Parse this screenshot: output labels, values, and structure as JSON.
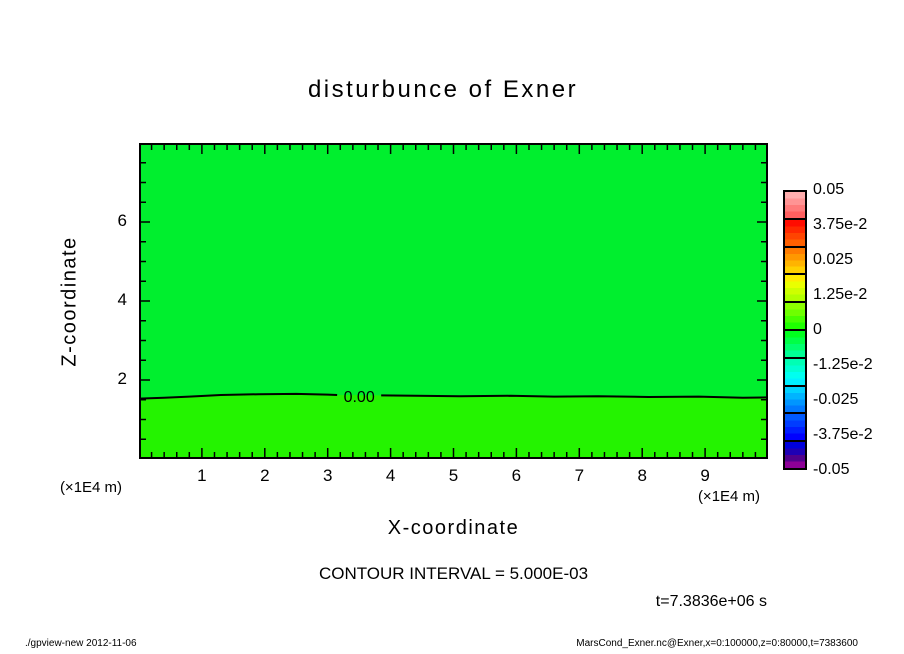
{
  "window": {
    "background": "#ffffff"
  },
  "title": "disturbunce of Exner",
  "axes": {
    "x_axis": {
      "label": "X-coordinate",
      "unit": "(×1E4 m)"
    },
    "z_axis": {
      "label": "Z-coordinate",
      "unit": "(×1E4 m)"
    }
  },
  "annotations": {
    "contour_interval_text": "CONTOUR INTERVAL = 5.000E-03",
    "time_label": "t=7.3836e+06 s"
  },
  "footer": {
    "command": "./gpview-new  2012-11-06",
    "dataset": "MarsCond_Exner.nc@Exner,x=0:100000,z=0:80000,t=7383600"
  },
  "chart_data": {
    "type": "heatmap",
    "subtype": "filled-contour",
    "title": "disturbunce of Exner",
    "xlabel": "X-coordinate",
    "ylabel": "Z-coordinate",
    "x_unit_scale": "1E4 m",
    "z_unit_scale": "1E4 m",
    "xlim": [
      0,
      10
    ],
    "zlim": [
      0,
      8
    ],
    "x_major_ticks": [
      1,
      2,
      3,
      4,
      5,
      6,
      7,
      8,
      9
    ],
    "x_minor_step": 0.2,
    "z_major_ticks": [
      2,
      4,
      6
    ],
    "z_minor_step": 0.5,
    "grid": false,
    "frame_color": "#000000",
    "contour_interval": 0.005,
    "field_summary": "Exner disturbance is approximately 0 everywhere: slightly negative (cyan-tinted green tone) above the zero contour near z=1.6e4 m, slightly positive (yellow-tinted green tone) below it.",
    "fill_above": "#00ef2e",
    "fill_below": "#24f300",
    "zero_contour": {
      "label": "0.00",
      "label_x": 3.5,
      "label_z": 1.6,
      "points_left": [
        [
          0,
          1.53
        ],
        [
          0.4,
          1.55
        ],
        [
          0.8,
          1.58
        ],
        [
          1.3,
          1.62
        ],
        [
          1.9,
          1.64
        ],
        [
          2.5,
          1.65
        ],
        [
          3.0,
          1.63
        ],
        [
          3.15,
          1.62
        ]
      ],
      "points_right": [
        [
          3.85,
          1.61
        ],
        [
          4.4,
          1.6
        ],
        [
          5.1,
          1.59
        ],
        [
          5.9,
          1.6
        ],
        [
          6.6,
          1.58
        ],
        [
          7.3,
          1.59
        ],
        [
          8.1,
          1.57
        ],
        [
          8.9,
          1.58
        ],
        [
          9.6,
          1.55
        ],
        [
          10,
          1.56
        ]
      ]
    },
    "colorbar": {
      "position": "right",
      "min": -0.05,
      "max": 0.05,
      "tick_labels": [
        "0.05",
        "3.75e-2",
        "0.025",
        "1.25e-2",
        "0",
        "-1.25e-2",
        "-0.025",
        "-3.75e-2",
        "-0.05"
      ],
      "tick_values": [
        0.05,
        0.0375,
        0.025,
        0.0125,
        0,
        -0.0125,
        -0.025,
        -0.0375,
        -0.05
      ],
      "segments": [
        {
          "range": [
            0.04,
            0.05
          ],
          "colors": [
            "#ffaeae",
            "#ff9494",
            "#ff7a7a",
            "#ff6060"
          ]
        },
        {
          "range": [
            0.03,
            0.04
          ],
          "colors": [
            "#ff0c00",
            "#ff2800",
            "#ff4400",
            "#ff6000"
          ]
        },
        {
          "range": [
            0.02,
            0.03
          ],
          "colors": [
            "#ff7c00",
            "#ff9800",
            "#ffb400",
            "#ffd000"
          ]
        },
        {
          "range": [
            0.01,
            0.02
          ],
          "colors": [
            "#ffec00",
            "#eaff00",
            "#ceff00",
            "#b2ff00"
          ]
        },
        {
          "range": [
            0.0,
            0.01
          ],
          "colors": [
            "#8cff00",
            "#6eff00",
            "#46ff00",
            "#1eff00"
          ]
        },
        {
          "range": [
            -0.01,
            0.0
          ],
          "colors": [
            "#00ff1e",
            "#00ff46",
            "#00ff6e",
            "#00ff96"
          ]
        },
        {
          "range": [
            -0.02,
            -0.01
          ],
          "colors": [
            "#00ffb4",
            "#00ffd2",
            "#00fff0",
            "#00f0ff"
          ]
        },
        {
          "range": [
            -0.03,
            -0.02
          ],
          "colors": [
            "#00d2ff",
            "#00b4ff",
            "#0096ff",
            "#0078ff"
          ]
        },
        {
          "range": [
            -0.04,
            -0.03
          ],
          "colors": [
            "#005aff",
            "#003cff",
            "#001eff",
            "#0000ff"
          ]
        },
        {
          "range": [
            -0.05,
            -0.04
          ],
          "colors": [
            "#0000dc",
            "#1e00b4",
            "#50008c",
            "#8c0096"
          ]
        }
      ]
    }
  }
}
